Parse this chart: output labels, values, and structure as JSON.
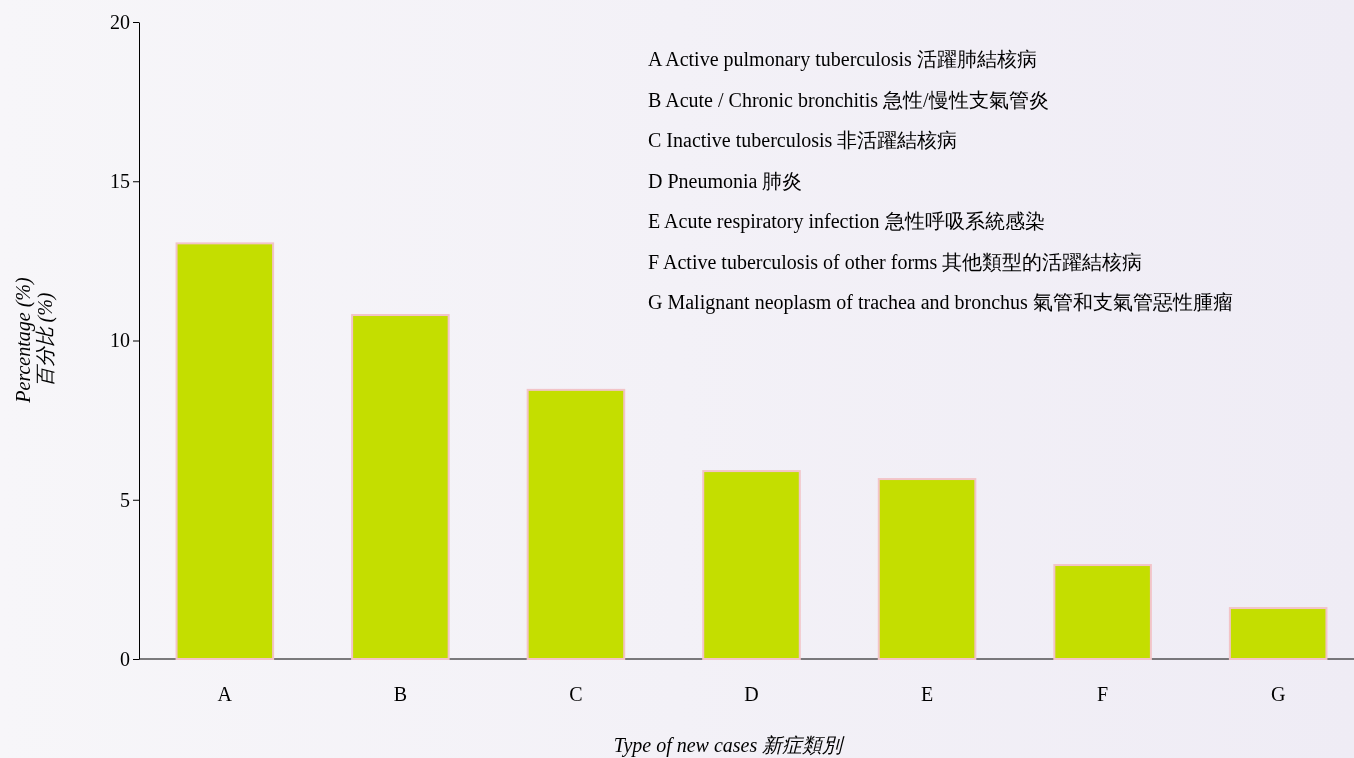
{
  "chart_data": {
    "type": "bar",
    "xlabel": "Type of new cases 新症類別",
    "ylabel": "Percentage (%)\n百分比 (%)",
    "categories": [
      "A",
      "B",
      "C",
      "D",
      "E",
      "F",
      "G"
    ],
    "values": [
      13.05,
      10.8,
      8.45,
      5.9,
      5.65,
      2.95,
      1.6
    ],
    "color": "#c4de00",
    "ylim": [
      0,
      20
    ],
    "yticks": [
      0,
      5,
      10,
      15,
      20
    ],
    "grid": false,
    "annotations": [
      "A  Active pulmonary tuberculosis  活躍肺結核病",
      "B  Acute / Chronic bronchitis  急性/慢性支氣管炎",
      "C  Inactive tuberculosis  非活躍結核病",
      "D  Pneumonia  肺炎",
      "E  Acute respiratory infection  急性呼吸系統感染",
      "F  Active tuberculosis of other forms  其他類型的活躍結核病",
      "G  Malignant neoplasm of trachea and bronchus   氣管和支氣管惡性腫瘤"
    ]
  }
}
